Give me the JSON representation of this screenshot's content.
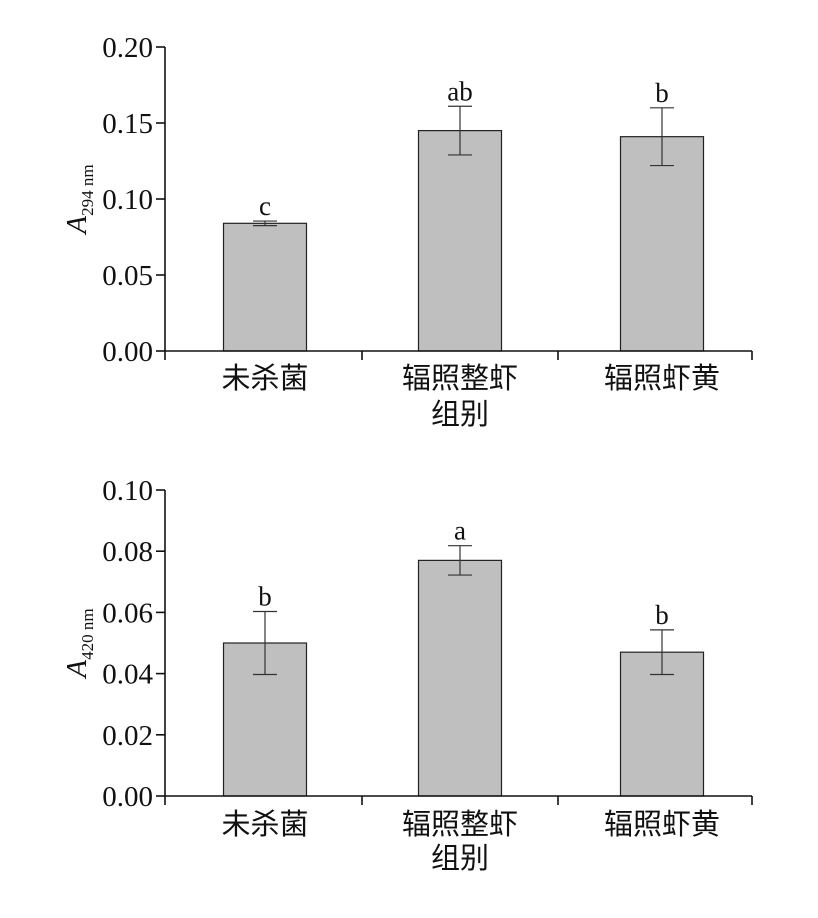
{
  "chart_data": [
    {
      "type": "bar",
      "categories": [
        "未杀菌",
        "辐照整虾",
        "辐照虾黄"
      ],
      "values": [
        0.084,
        0.145,
        0.141
      ],
      "errors": [
        0.0015,
        0.016,
        0.019
      ],
      "significance": [
        "c",
        "ab",
        "b"
      ],
      "ylabel": "A",
      "ylabel_sub": "294 nm",
      "xlabel": "组别",
      "ylim": [
        0,
        0.2
      ],
      "yticks": [
        "0.00",
        "0.05",
        "0.10",
        "0.15",
        "0.20"
      ],
      "bar_color": "#bfbfbf",
      "grid": false
    },
    {
      "type": "bar",
      "categories": [
        "未杀菌",
        "辐照整虾",
        "辐照虾黄"
      ],
      "values": [
        0.05,
        0.077,
        0.047
      ],
      "errors": [
        0.0103,
        0.0048,
        0.0073
      ],
      "significance": [
        "b",
        "a",
        "b"
      ],
      "ylabel": "A",
      "ylabel_sub": "420 nm",
      "xlabel": "组别",
      "ylim": [
        0,
        0.1
      ],
      "yticks": [
        "0.00",
        "0.02",
        "0.04",
        "0.06",
        "0.08",
        "0.10"
      ],
      "bar_color": "#bfbfbf",
      "grid": false
    }
  ]
}
